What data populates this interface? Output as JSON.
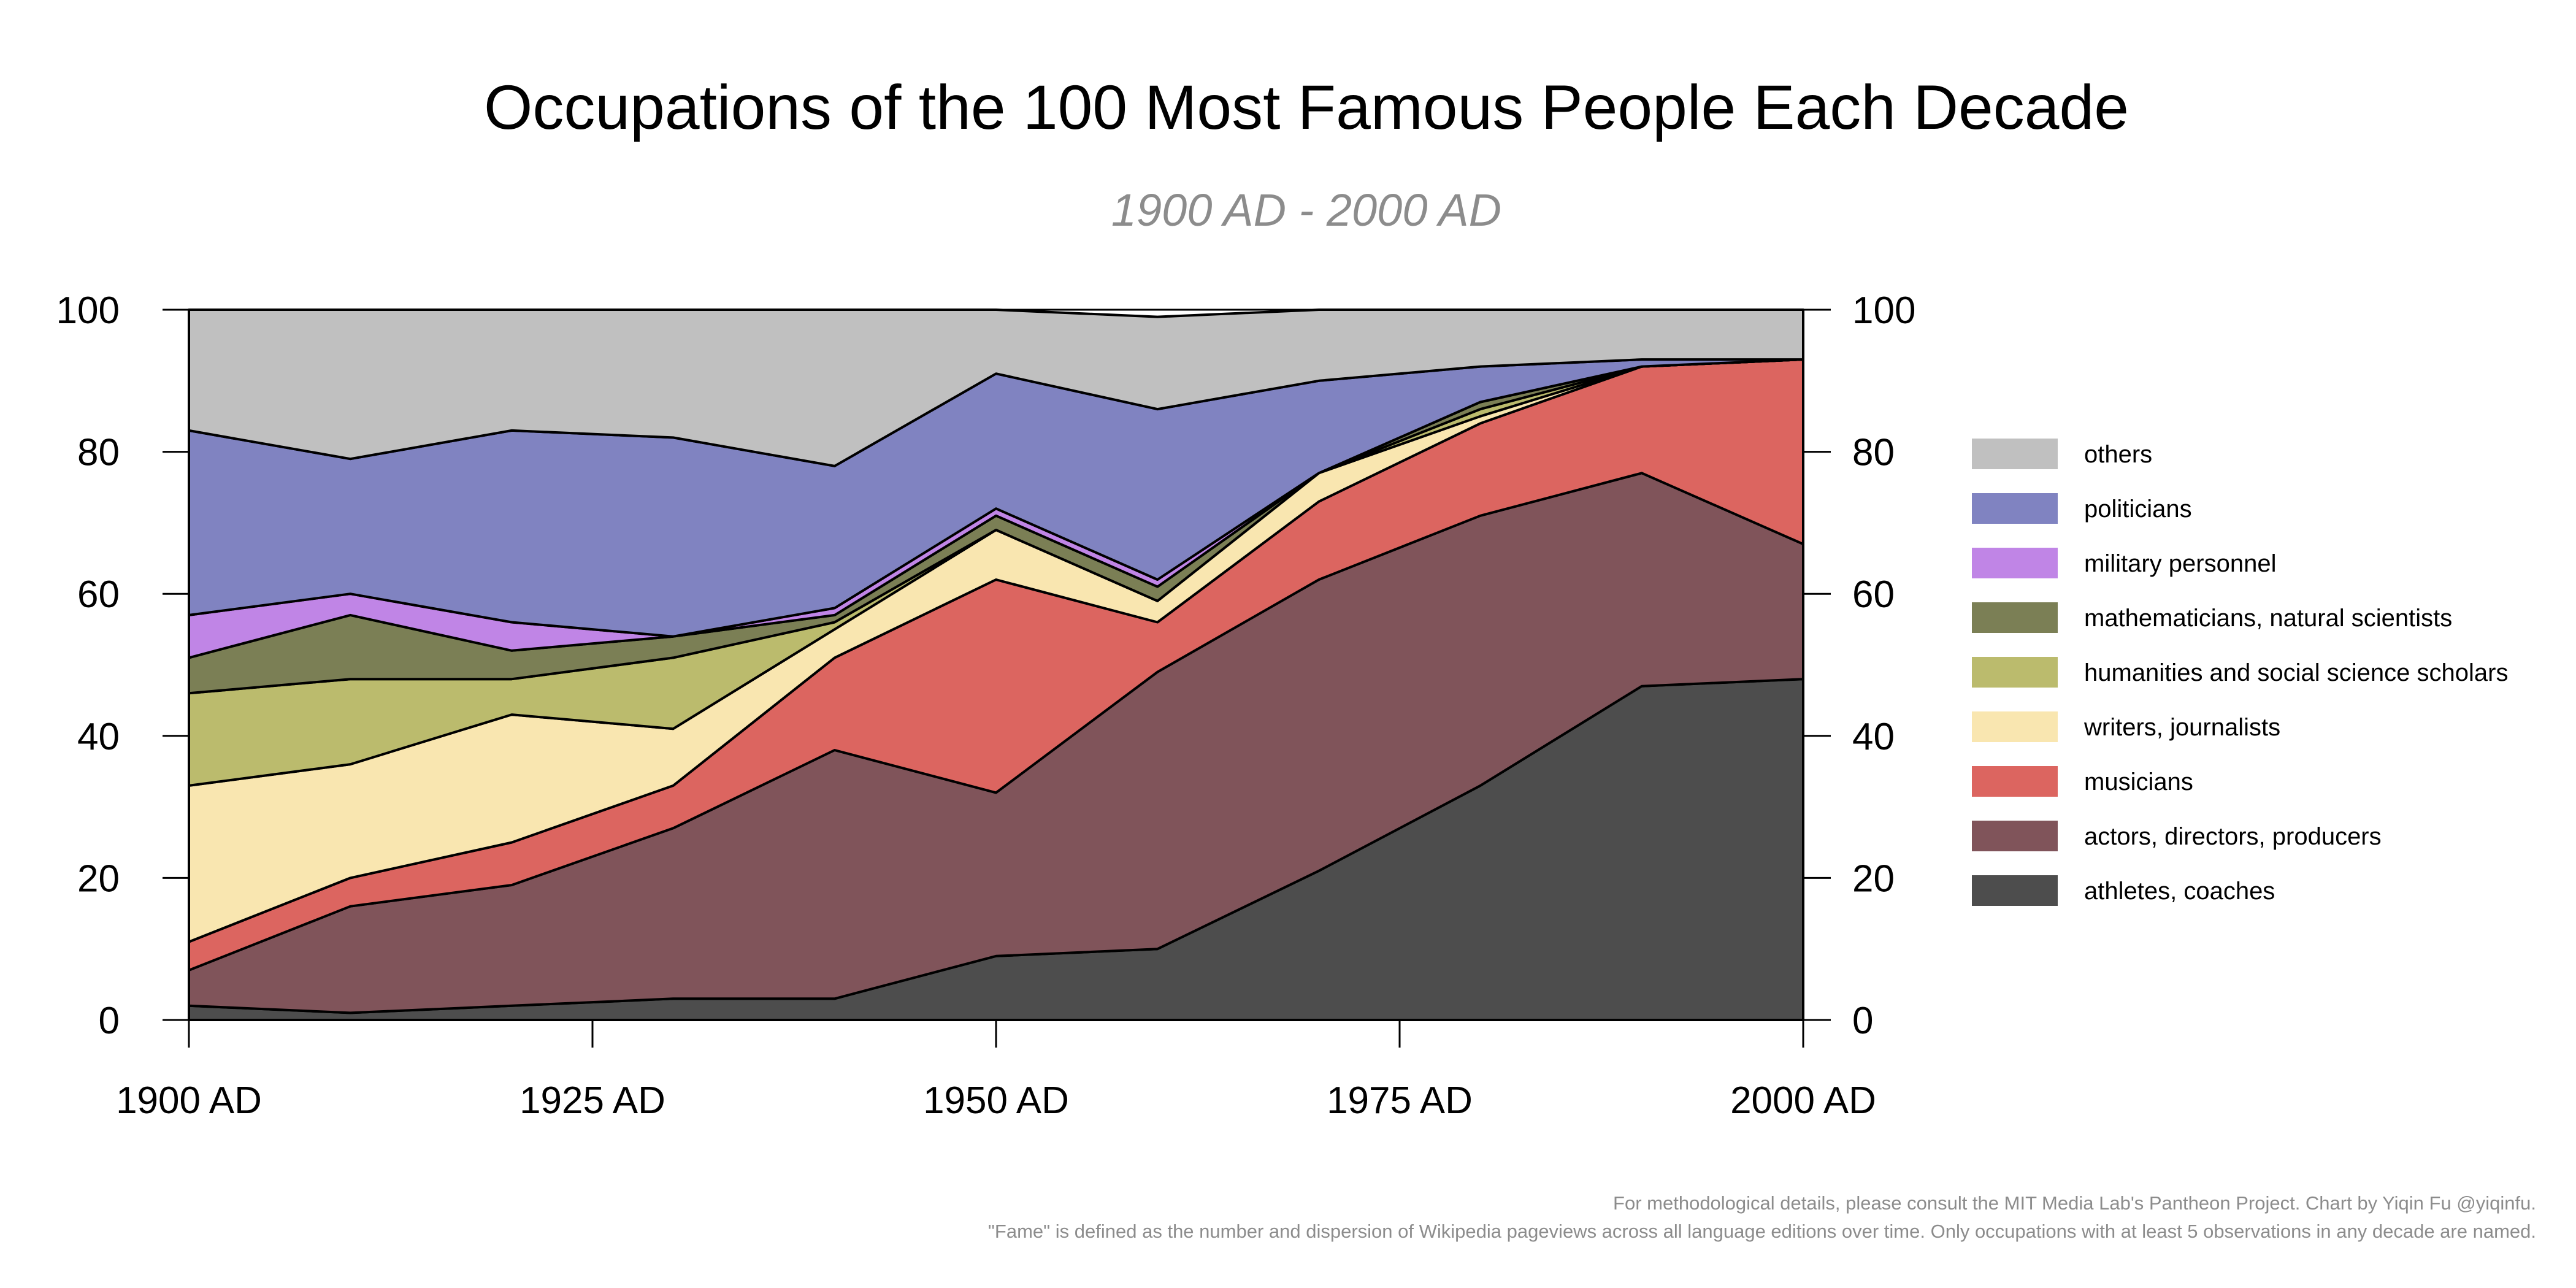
{
  "chart_data": {
    "type": "area",
    "stacked": true,
    "title": "Occupations of the 100 Most Famous People Each Decade",
    "subtitle": "1900 AD - 2000 AD",
    "xlabel": "",
    "ylabel": "",
    "x": [
      1900,
      1910,
      1920,
      1930,
      1940,
      1950,
      1960,
      1970,
      1980,
      1990,
      2000
    ],
    "xlim": [
      1900,
      2000
    ],
    "ylim": [
      0,
      100
    ],
    "x_ticks": [
      1900,
      1925,
      1950,
      1975,
      2000
    ],
    "x_tick_labels": [
      "1900 AD",
      "1925 AD",
      "1950 AD",
      "1975 AD",
      "2000 AD"
    ],
    "y_ticks": [
      0,
      20,
      40,
      60,
      80,
      100
    ],
    "y_tick_labels": [
      "0",
      "20",
      "40",
      "60",
      "80",
      "100"
    ],
    "y_axis_both_sides": true,
    "grid": false,
    "legend_position": "right",
    "series": [
      {
        "name": "athletes, coaches",
        "color": "#4d4d4d",
        "values": [
          2,
          1,
          2,
          3,
          3,
          9,
          10,
          21,
          33,
          47,
          48
        ]
      },
      {
        "name": "actors, directors, producers",
        "color": "#80545a",
        "values": [
          5,
          15,
          17,
          24,
          35,
          23,
          39,
          41,
          38,
          30,
          19
        ]
      },
      {
        "name": "musicians",
        "color": "#dc6560",
        "values": [
          4,
          4,
          6,
          6,
          13,
          30,
          7,
          11,
          13,
          15,
          26
        ]
      },
      {
        "name": "writers, journalists",
        "color": "#f9e6b0",
        "values": [
          22,
          16,
          18,
          8,
          4,
          7,
          3,
          4,
          1,
          0,
          0
        ]
      },
      {
        "name": "humanities and social science scholars",
        "color": "#bbbb6d",
        "values": [
          13,
          12,
          5,
          10,
          1,
          0,
          0,
          0,
          1,
          0,
          0
        ]
      },
      {
        "name": "mathematicians, natural scientists",
        "color": "#7b7f55",
        "values": [
          5,
          9,
          4,
          3,
          1,
          2,
          2,
          0,
          1,
          0,
          0
        ]
      },
      {
        "name": "military personnel",
        "color": "#c085e6",
        "values": [
          6,
          3,
          4,
          0,
          1,
          1,
          1,
          0,
          0,
          0,
          0
        ]
      },
      {
        "name": "politicians",
        "color": "#8083c1",
        "values": [
          26,
          19,
          27,
          28,
          20,
          19,
          24,
          13,
          5,
          1,
          0
        ]
      },
      {
        "name": "others",
        "color": "#c0c0c0",
        "values": [
          17,
          21,
          17,
          18,
          22,
          9,
          13,
          10,
          8,
          7,
          7
        ]
      }
    ],
    "legend_order": [
      "others",
      "politicians",
      "military personnel",
      "mathematicians, natural scientists",
      "humanities and social science scholars",
      "writers, journalists",
      "musicians",
      "actors, directors, producers",
      "athletes, coaches"
    ]
  },
  "footnotes": {
    "line1": "For methodological details, please consult the MIT Media Lab's Pantheon Project. Chart by Yiqin Fu @yiqinfu.",
    "line2": "\"Fame\" is defined as the number and dispersion of Wikipedia pageviews across all language editions over time. Only occupations with at least 5 observations in any decade are named."
  }
}
